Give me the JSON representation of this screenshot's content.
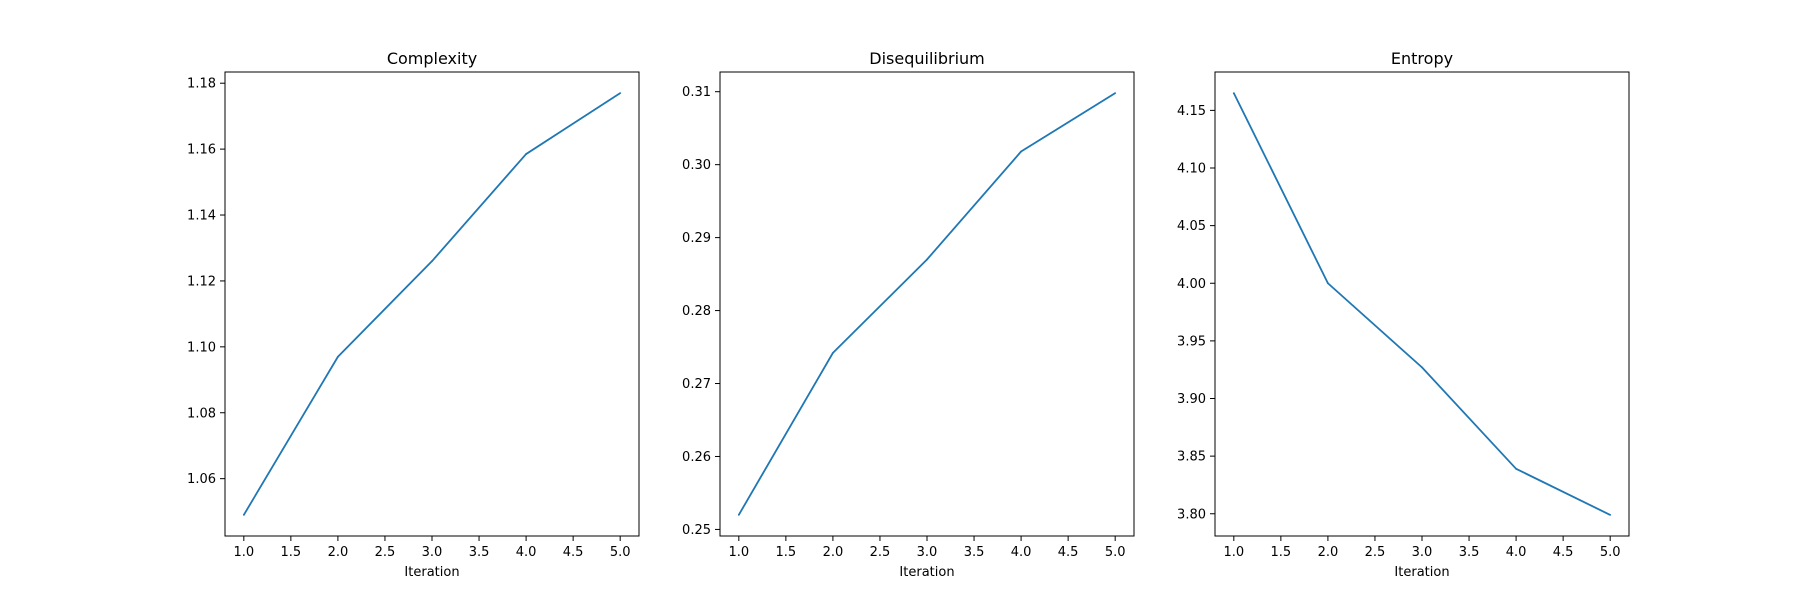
{
  "chart_data": [
    {
      "type": "line",
      "title": "Complexity",
      "xlabel": "Iteration",
      "ylabel": "",
      "x": [
        1,
        2,
        3,
        4,
        5
      ],
      "series": [
        {
          "values": [
            1.049,
            1.097,
            1.126,
            1.1585,
            1.177
          ]
        }
      ],
      "xlim": [
        0.8,
        5.2
      ],
      "ylim": [
        1.0426,
        1.1834
      ],
      "xticks": [
        1.0,
        1.5,
        2.0,
        2.5,
        3.0,
        3.5,
        4.0,
        4.5,
        5.0
      ],
      "xtick_labels": [
        "1.0",
        "1.5",
        "2.0",
        "2.5",
        "3.0",
        "3.5",
        "4.0",
        "4.5",
        "5.0"
      ],
      "yticks": [
        1.06,
        1.08,
        1.1,
        1.12,
        1.14,
        1.16,
        1.18
      ],
      "ytick_labels": [
        "1.06",
        "1.08",
        "1.10",
        "1.12",
        "1.14",
        "1.16",
        "1.18"
      ],
      "grid": false,
      "color": "#1f77b4"
    },
    {
      "type": "line",
      "title": "Disequilibrium",
      "xlabel": "Iteration",
      "ylabel": "",
      "x": [
        1,
        2,
        3,
        4,
        5
      ],
      "series": [
        {
          "values": [
            0.252,
            0.2742,
            0.287,
            0.3018,
            0.3098
          ]
        }
      ],
      "xlim": [
        0.8,
        5.2
      ],
      "ylim": [
        0.2491,
        0.3127
      ],
      "xticks": [
        1.0,
        1.5,
        2.0,
        2.5,
        3.0,
        3.5,
        4.0,
        4.5,
        5.0
      ],
      "xtick_labels": [
        "1.0",
        "1.5",
        "2.0",
        "2.5",
        "3.0",
        "3.5",
        "4.0",
        "4.5",
        "5.0"
      ],
      "yticks": [
        0.25,
        0.26,
        0.27,
        0.28,
        0.29,
        0.3,
        0.31
      ],
      "ytick_labels": [
        "0.25",
        "0.26",
        "0.27",
        "0.28",
        "0.29",
        "0.30",
        "0.31"
      ],
      "grid": false,
      "color": "#1f77b4"
    },
    {
      "type": "line",
      "title": "Entropy",
      "xlabel": "Iteration",
      "ylabel": "",
      "x": [
        1,
        2,
        3,
        4,
        5
      ],
      "series": [
        {
          "values": [
            4.165,
            4.0,
            3.927,
            3.839,
            3.799
          ]
        }
      ],
      "xlim": [
        0.8,
        5.2
      ],
      "ylim": [
        3.7807,
        4.1833
      ],
      "xticks": [
        1.0,
        1.5,
        2.0,
        2.5,
        3.0,
        3.5,
        4.0,
        4.5,
        5.0
      ],
      "xtick_labels": [
        "1.0",
        "1.5",
        "2.0",
        "2.5",
        "3.0",
        "3.5",
        "4.0",
        "4.5",
        "5.0"
      ],
      "yticks": [
        3.8,
        3.85,
        3.9,
        3.95,
        4.0,
        4.05,
        4.1,
        4.15
      ],
      "ytick_labels": [
        "3.80",
        "3.85",
        "3.90",
        "3.95",
        "4.00",
        "4.05",
        "4.10",
        "4.15"
      ],
      "grid": false,
      "color": "#1f77b4"
    }
  ]
}
